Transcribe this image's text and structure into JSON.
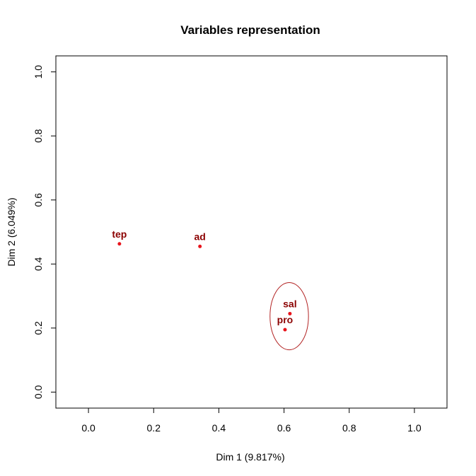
{
  "chart_data": {
    "type": "scatter",
    "title": "Variables representation",
    "xlabel": "Dim 1 (9.817%)",
    "ylabel": "Dim 2 (6.049%)",
    "xlim": [
      -0.1,
      1.1
    ],
    "ylim": [
      -0.05,
      1.05
    ],
    "xticks": [
      "0.0",
      "0.2",
      "0.4",
      "0.6",
      "0.8",
      "1.0"
    ],
    "yticks": [
      "0.0",
      "0.2",
      "0.4",
      "0.6",
      "0.8",
      "1.0"
    ],
    "grid": false,
    "colors": {
      "points": "#e8141c",
      "labels": "#8b0000",
      "ellipse": "#b22222",
      "frame": "#000000"
    },
    "points": [
      {
        "label": "tep",
        "x": 0.095,
        "y": 0.463
      },
      {
        "label": "ad",
        "x": 0.342,
        "y": 0.455
      },
      {
        "label": "sal",
        "x": 0.618,
        "y": 0.245
      },
      {
        "label": "pro",
        "x": 0.603,
        "y": 0.195
      }
    ],
    "ellipse": {
      "cx": 0.616,
      "cy": 0.237,
      "rx": 0.059,
      "ry": 0.105
    }
  }
}
